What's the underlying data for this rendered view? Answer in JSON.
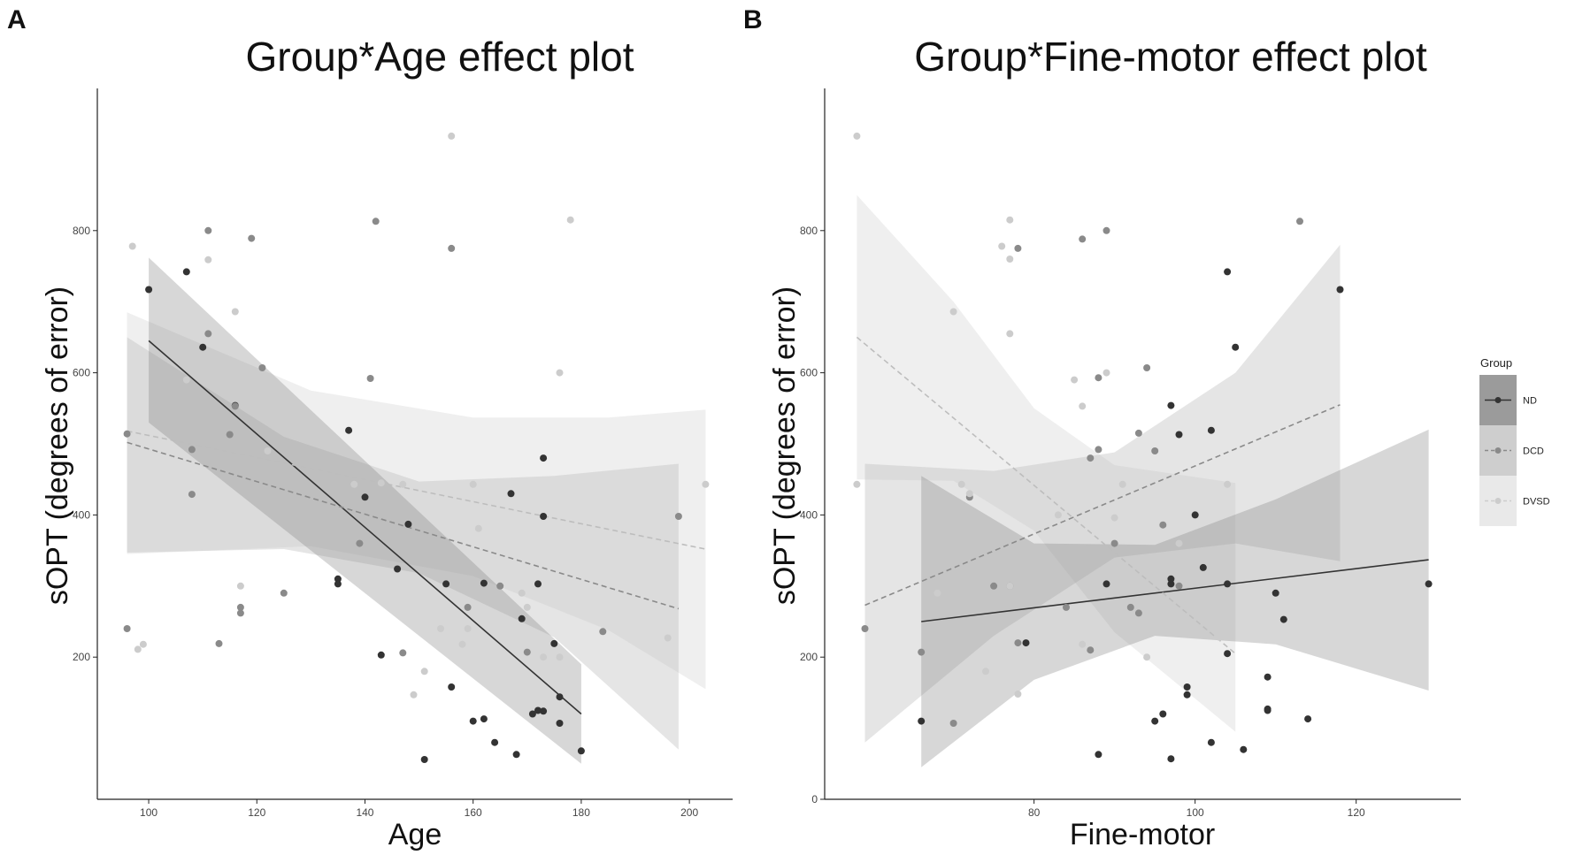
{
  "panel_letters": {
    "a": "A",
    "b": "B"
  },
  "chart_data": [
    {
      "type": "scatter",
      "title": "Group*Age effect plot",
      "xlabel": "Age",
      "ylabel": "sOPT (degrees of error)",
      "xlim": [
        90.5,
        208
      ],
      "ylim": [
        0,
        1000
      ],
      "xticks": [
        "100",
        "120",
        "140",
        "160",
        "180",
        "200"
      ],
      "yticks": [
        "200",
        "400",
        "600",
        "800"
      ],
      "grid": false,
      "series": [
        {
          "name": "ND",
          "color": "#333333",
          "linetype": "solid",
          "fit": {
            "x": [
              100,
              180
            ],
            "y": [
              645,
              120
            ]
          },
          "ribbon": {
            "x": [
              100,
              180
            ],
            "lower": [
              530,
              50
            ],
            "upper": [
              762,
              190
            ]
          },
          "points": [
            [
              100,
              717
            ],
            [
              107,
              742
            ],
            [
              110,
              636
            ],
            [
              116,
              554
            ],
            [
              135,
              310
            ],
            [
              135,
              303
            ],
            [
              137,
              519
            ],
            [
              140,
              425
            ],
            [
              143,
              203
            ],
            [
              146,
              324
            ],
            [
              148,
              387
            ],
            [
              151,
              56
            ],
            [
              155,
              303
            ],
            [
              156,
              158
            ],
            [
              160,
              110
            ],
            [
              162,
              113
            ],
            [
              162,
              304
            ],
            [
              164,
              80
            ],
            [
              167,
              430
            ],
            [
              168,
              63
            ],
            [
              169,
              254
            ],
            [
              171,
              120
            ],
            [
              172,
              303
            ],
            [
              172,
              125
            ],
            [
              173,
              124
            ],
            [
              173,
              480
            ],
            [
              173,
              398
            ],
            [
              175,
              219
            ],
            [
              176,
              144
            ],
            [
              176,
              107
            ],
            [
              180,
              68
            ]
          ]
        },
        {
          "name": "DCD",
          "color": "#8a8a8a",
          "linetype": "dashed",
          "fit": {
            "x": [
              96,
              198
            ],
            "y": [
              502,
              268
            ]
          },
          "ribbon": {
            "x": [
              96,
              125,
              150,
              175,
              198
            ],
            "lower": [
              347,
              352,
              318,
              228,
              70
            ],
            "upper": [
              650,
              510,
              447,
              455,
              472
            ]
          },
          "points": [
            [
              96,
              240
            ],
            [
              96,
              514
            ],
            [
              108,
              492
            ],
            [
              108,
              429
            ],
            [
              111,
              655
            ],
            [
              111,
              800
            ],
            [
              113,
              219
            ],
            [
              115,
              513
            ],
            [
              116,
              553
            ],
            [
              117,
              270
            ],
            [
              117,
              262
            ],
            [
              119,
              789
            ],
            [
              121,
              607
            ],
            [
              125,
              290
            ],
            [
              139,
              360
            ],
            [
              141,
              592
            ],
            [
              142,
              813
            ],
            [
              147,
              206
            ],
            [
              156,
              775
            ],
            [
              159,
              270
            ],
            [
              165,
              300
            ],
            [
              170,
              207
            ],
            [
              184,
              236
            ],
            [
              198,
              398
            ]
          ]
        },
        {
          "name": "DVSD",
          "color": "#cccccc",
          "linetype": "dashed",
          "fit": {
            "x": [
              96,
              203
            ],
            "y": [
              518,
              352
            ]
          },
          "ribbon": {
            "x": [
              96,
              130,
              160,
              185,
              203
            ],
            "lower": [
              345,
              356,
              314,
              238,
              155
            ],
            "upper": [
              685,
              575,
              537,
              537,
              548
            ]
          },
          "points": [
            [
              97,
              778
            ],
            [
              98,
              211
            ],
            [
              99,
              218
            ],
            [
              107,
              590
            ],
            [
              111,
              759
            ],
            [
              116,
              686
            ],
            [
              117,
              300
            ],
            [
              122,
              490
            ],
            [
              138,
              443
            ],
            [
              143,
              445
            ],
            [
              147,
              443
            ],
            [
              149,
              147
            ],
            [
              151,
              180
            ],
            [
              154,
              240
            ],
            [
              156,
              933
            ],
            [
              158,
              218
            ],
            [
              159,
              240
            ],
            [
              160,
              443
            ],
            [
              161,
              381
            ],
            [
              169,
              290
            ],
            [
              170,
              270
            ],
            [
              173,
              200
            ],
            [
              176,
              600
            ],
            [
              176,
              200
            ],
            [
              178,
              815
            ],
            [
              196,
              227
            ],
            [
              203,
              443
            ]
          ]
        }
      ]
    },
    {
      "type": "scatter",
      "title": "Group*Fine-motor effect plot",
      "xlabel": "Fine-motor",
      "ylabel": "sOPT (degrees of error)",
      "xlim": [
        54,
        133
      ],
      "ylim": [
        0,
        1000
      ],
      "xticks": [
        "80",
        "100",
        "120"
      ],
      "yticks": [
        "0",
        "200",
        "400",
        "600",
        "800"
      ],
      "grid": false,
      "series": [
        {
          "name": "ND",
          "color": "#333333",
          "linetype": "solid",
          "fit": {
            "x": [
              66,
              129
            ],
            "y": [
              250,
              337
            ]
          },
          "ribbon": {
            "x": [
              66,
              80,
              95,
              110,
              129
            ],
            "lower": [
              45,
              168,
              230,
              218,
              153
            ],
            "upper": [
              455,
              360,
              358,
              422,
              520
            ]
          },
          "points": [
            [
              66,
              110
            ],
            [
              79,
              220
            ],
            [
              88,
              63
            ],
            [
              89,
              303
            ],
            [
              95,
              110
            ],
            [
              96,
              120
            ],
            [
              97,
              57
            ],
            [
              97,
              303
            ],
            [
              97,
              310
            ],
            [
              97,
              554
            ],
            [
              98,
              513
            ],
            [
              99,
              158
            ],
            [
              99,
              147
            ],
            [
              100,
              400
            ],
            [
              101,
              326
            ],
            [
              102,
              80
            ],
            [
              102,
              519
            ],
            [
              104,
              205
            ],
            [
              104,
              303
            ],
            [
              104,
              742
            ],
            [
              105,
              636
            ],
            [
              106,
              70
            ],
            [
              109,
              125
            ],
            [
              109,
              172
            ],
            [
              109,
              127
            ],
            [
              110,
              290
            ],
            [
              111,
              253
            ],
            [
              114,
              113
            ],
            [
              118,
              717
            ],
            [
              129,
              303
            ]
          ]
        },
        {
          "name": "DCD",
          "color": "#8a8a8a",
          "linetype": "dashed",
          "fit": {
            "x": [
              59,
              118
            ],
            "y": [
              273,
              555
            ]
          },
          "ribbon": {
            "x": [
              59,
              75,
              90,
              105,
              118
            ],
            "lower": [
              80,
              230,
              340,
              360,
              335
            ],
            "upper": [
              472,
              462,
              488,
              600,
              780
            ]
          },
          "points": [
            [
              59,
              240
            ],
            [
              66,
              207
            ],
            [
              70,
              107
            ],
            [
              72,
              425
            ],
            [
              75,
              300
            ],
            [
              77,
              300
            ],
            [
              78,
              775
            ],
            [
              78,
              220
            ],
            [
              84,
              270
            ],
            [
              86,
              788
            ],
            [
              87,
              480
            ],
            [
              87,
              210
            ],
            [
              88,
              593
            ],
            [
              88,
              492
            ],
            [
              89,
              800
            ],
            [
              90,
              360
            ],
            [
              92,
              270
            ],
            [
              93,
              262
            ],
            [
              93,
              515
            ],
            [
              94,
              607
            ],
            [
              95,
              490
            ],
            [
              96,
              386
            ],
            [
              98,
              300
            ],
            [
              113,
              813
            ]
          ]
        },
        {
          "name": "DVSD",
          "color": "#cccccc",
          "linetype": "dashed",
          "fit": {
            "x": [
              58,
              105
            ],
            "y": [
              650,
              205
            ]
          },
          "ribbon": {
            "x": [
              58,
              70,
              80,
              90,
              105
            ],
            "lower": [
              450,
              448,
              378,
              235,
              95
            ],
            "upper": [
              850,
              700,
              550,
              470,
              445
            ]
          },
          "points": [
            [
              58,
              933
            ],
            [
              58,
              443
            ],
            [
              68,
              290
            ],
            [
              70,
              686
            ],
            [
              71,
              443
            ],
            [
              72,
              430
            ],
            [
              74,
              180
            ],
            [
              76,
              778
            ],
            [
              77,
              815
            ],
            [
              77,
              760
            ],
            [
              77,
              655
            ],
            [
              77,
              300
            ],
            [
              78,
              148
            ],
            [
              83,
              400
            ],
            [
              85,
              590
            ],
            [
              86,
              553
            ],
            [
              86,
              218
            ],
            [
              89,
              600
            ],
            [
              90,
              396
            ],
            [
              91,
              443
            ],
            [
              94,
              200
            ],
            [
              95,
              270
            ],
            [
              98,
              360
            ],
            [
              103,
              228
            ],
            [
              104,
              240
            ],
            [
              104,
              443
            ]
          ]
        }
      ]
    }
  ],
  "legend": {
    "title": "Group",
    "items": [
      {
        "label": "ND",
        "color": "#333333",
        "linetype": "solid"
      },
      {
        "label": "DCD",
        "color": "#8a8a8a",
        "linetype": "dashed"
      },
      {
        "label": "DVSD",
        "color": "#cccccc",
        "linetype": "dashed"
      }
    ]
  }
}
